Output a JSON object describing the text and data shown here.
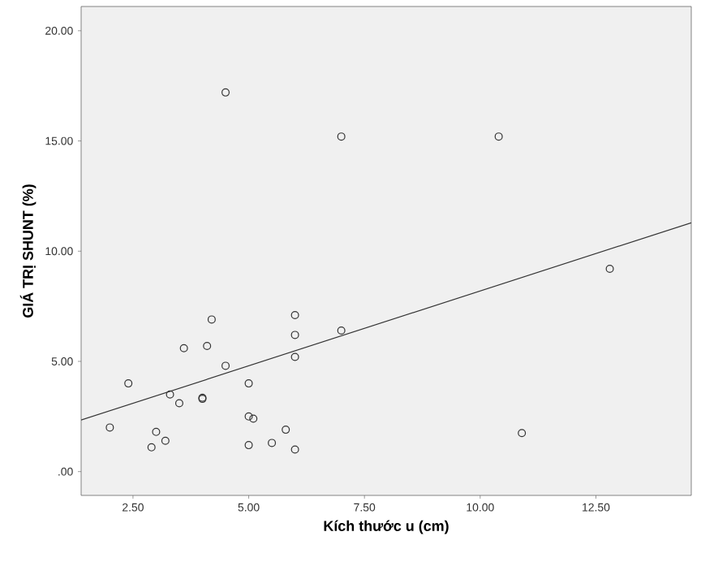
{
  "chart_data": {
    "type": "scatter",
    "xlabel": "Kích thước u (cm)",
    "ylabel": "GIÁ TRỊ SHUNT (%)",
    "marker": "circle",
    "xlim": [
      1.38,
      14.56
    ],
    "ylim": [
      -1.08,
      21.1
    ],
    "xticks": [
      {
        "value": 2.5,
        "label": "2.50"
      },
      {
        "value": 5,
        "label": "5.00"
      },
      {
        "value": 7.5,
        "label": "7.50"
      },
      {
        "value": 10,
        "label": "10.00"
      },
      {
        "value": 12.5,
        "label": "12.50"
      }
    ],
    "yticks": [
      {
        "value": 0,
        "label": ".00"
      },
      {
        "value": 5,
        "label": "5.00"
      },
      {
        "value": 10,
        "label": "10.00"
      },
      {
        "value": 15,
        "label": "15.00"
      },
      {
        "value": 20,
        "label": "20.00"
      }
    ],
    "series": [
      {
        "color": "#333333",
        "x": [
          2.0,
          2.4,
          2.9,
          3.0,
          3.2,
          3.3,
          3.5,
          3.6,
          4.0,
          4.0,
          4.1,
          4.2,
          4.5,
          4.5,
          5.0,
          5.0,
          5.1,
          5.0,
          5.5,
          5.8,
          6.0,
          6.0,
          6.0,
          6.0,
          7.0,
          7.0,
          10.4,
          10.9,
          12.8
        ],
        "values": [
          2.0,
          4.0,
          1.1,
          1.8,
          1.4,
          3.5,
          3.1,
          5.6,
          3.3,
          3.35,
          5.7,
          6.9,
          17.2,
          4.8,
          4.0,
          2.5,
          2.4,
          1.2,
          1.3,
          1.9,
          7.1,
          6.2,
          5.2,
          1.0,
          15.2,
          6.4,
          15.2,
          1.75,
          9.2
        ]
      },
      {
        "type": "line",
        "color": "#333333",
        "x": [
          1.38,
          14.56
        ],
        "values": [
          2.34,
          11.29
        ],
        "marker": "none"
      }
    ]
  }
}
